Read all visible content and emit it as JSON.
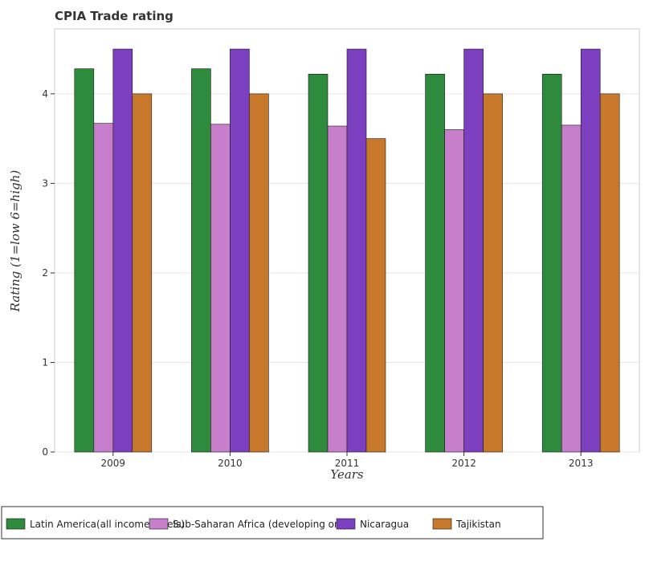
{
  "chart_data": {
    "type": "bar",
    "title": "CPIA Trade rating",
    "xlabel": "Years",
    "ylabel": "Rating (1=low 6=high)",
    "categories": [
      "2009",
      "2010",
      "2011",
      "2012",
      "2013"
    ],
    "ylim": [
      0,
      4.725
    ],
    "yticks": [
      0,
      1,
      2,
      3,
      4
    ],
    "grid": true,
    "legend_position": "bottom",
    "series": [
      {
        "name": "Latin America(all income levels)",
        "color": "#2e8b3d",
        "values": [
          4.28,
          4.28,
          4.22,
          4.22,
          4.22
        ]
      },
      {
        "name": "Sub-Saharan Africa (developing only)",
        "color": "#c77ecb",
        "values": [
          3.67,
          3.66,
          3.64,
          3.6,
          3.65
        ]
      },
      {
        "name": "Nicaragua",
        "color": "#7b3fbf",
        "values": [
          4.5,
          4.5,
          4.5,
          4.5,
          4.5
        ]
      },
      {
        "name": "Tajikistan",
        "color": "#c8782a",
        "values": [
          4.0,
          4.0,
          3.5,
          4.0,
          4.0
        ]
      }
    ]
  }
}
